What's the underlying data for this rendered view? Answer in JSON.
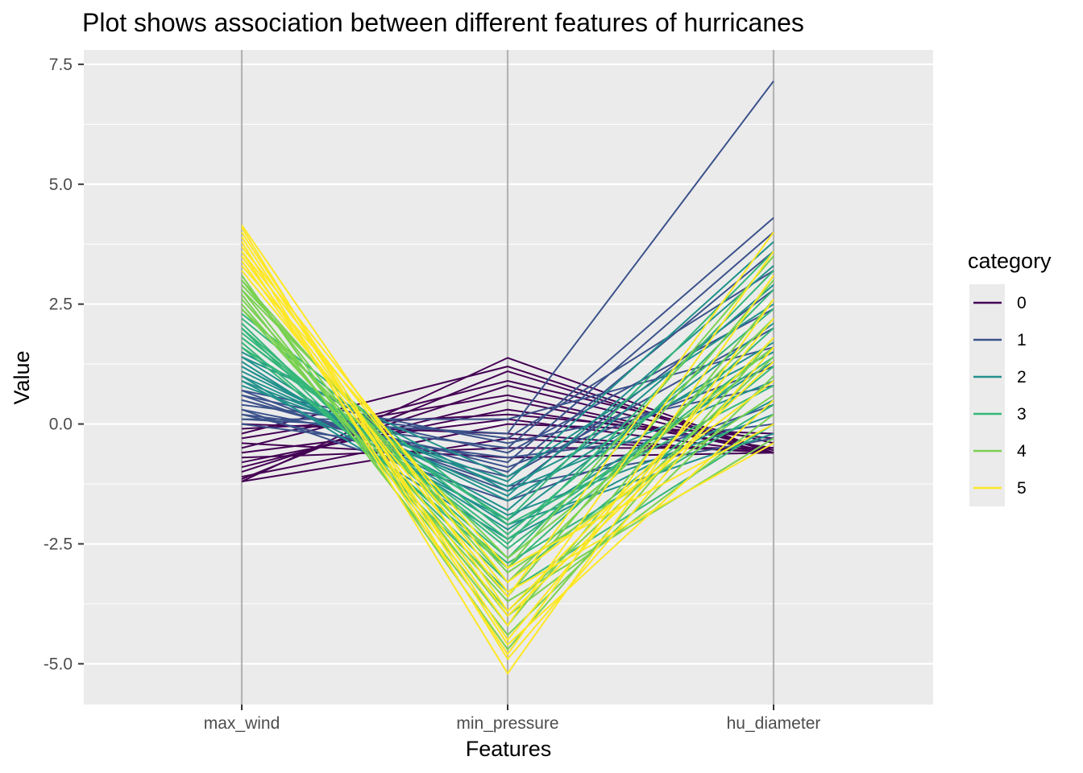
{
  "chart_data": {
    "type": "parallel-coordinates",
    "title": "Plot shows association between different features of hurricanes",
    "xlabel": "Features",
    "ylabel": "Value",
    "categories": [
      "max_wind",
      "min_pressure",
      "hu_diameter"
    ],
    "ylim": [
      -5.85,
      7.8
    ],
    "yticks": [
      7.5,
      5.0,
      2.5,
      0.0,
      -2.5,
      -5.0
    ],
    "ytick_labels": [
      "7.5",
      "5.0",
      "2.5",
      "0.0",
      "-2.5",
      "-5.0"
    ],
    "grid": true,
    "legend": {
      "title": "category",
      "position": "right",
      "entries": [
        "0",
        "1",
        "2",
        "3",
        "4",
        "5"
      ]
    },
    "series": [
      {
        "name": "0",
        "color": "#440154",
        "lines": [
          [
            -1.2,
            1.38,
            -0.6
          ],
          [
            -1.15,
            1.1,
            -0.6
          ],
          [
            -1.0,
            0.8,
            -0.55
          ],
          [
            -0.9,
            0.5,
            -0.6
          ],
          [
            -0.8,
            0.3,
            -0.5
          ],
          [
            -0.6,
            0.1,
            -0.6
          ],
          [
            -0.5,
            0.9,
            -0.4
          ],
          [
            -0.3,
            0.6,
            -0.6
          ],
          [
            -0.1,
            0.2,
            -0.3
          ],
          [
            0.0,
            -0.2,
            -0.6
          ],
          [
            -1.2,
            -0.3,
            -0.6
          ],
          [
            -0.7,
            -0.5,
            -0.5
          ],
          [
            -0.4,
            -0.7,
            -0.6
          ],
          [
            -1.1,
            0.0,
            -0.2
          ],
          [
            -0.2,
            1.2,
            -0.6
          ]
        ]
      },
      {
        "name": "1",
        "color": "#3b528b",
        "lines": [
          [
            0.1,
            -0.2,
            7.15
          ],
          [
            0.2,
            -0.5,
            4.3
          ],
          [
            0.3,
            -0.8,
            4.0
          ],
          [
            0.5,
            -1.0,
            3.6
          ],
          [
            0.4,
            -0.3,
            3.2
          ],
          [
            0.7,
            -1.4,
            2.8
          ],
          [
            0.6,
            -0.6,
            2.4
          ],
          [
            0.2,
            -1.1,
            2.0
          ],
          [
            0.1,
            0.1,
            1.6
          ],
          [
            0.5,
            -0.9,
            1.2
          ],
          [
            0.7,
            -0.4,
            0.8
          ],
          [
            0.3,
            -1.6,
            0.4
          ],
          [
            0.0,
            -0.7,
            0.0
          ],
          [
            0.6,
            -1.3,
            -0.3
          ]
        ]
      },
      {
        "name": "2",
        "color": "#21918c",
        "lines": [
          [
            0.8,
            -1.2,
            3.8
          ],
          [
            1.0,
            -1.5,
            3.3
          ],
          [
            1.2,
            -1.8,
            2.9
          ],
          [
            1.4,
            -1.1,
            2.5
          ],
          [
            0.9,
            -2.0,
            2.1
          ],
          [
            1.1,
            -1.6,
            1.7
          ],
          [
            1.3,
            -2.2,
            1.3
          ],
          [
            1.5,
            -1.4,
            0.9
          ],
          [
            1.0,
            -2.4,
            0.5
          ],
          [
            1.2,
            -1.9,
            0.2
          ],
          [
            1.4,
            -2.1,
            -0.2
          ],
          [
            0.9,
            -1.3,
            1.5
          ]
        ]
      },
      {
        "name": "3",
        "color": "#35b779",
        "lines": [
          [
            1.6,
            -2.0,
            3.6
          ],
          [
            1.8,
            -2.5,
            3.2
          ],
          [
            2.0,
            -2.8,
            2.8
          ],
          [
            2.2,
            -2.3,
            2.4
          ],
          [
            1.7,
            -3.0,
            2.0
          ],
          [
            1.9,
            -2.6,
            1.6
          ],
          [
            2.1,
            -3.3,
            1.2
          ],
          [
            2.3,
            -2.1,
            0.8
          ],
          [
            1.6,
            -2.9,
            0.4
          ],
          [
            2.0,
            -3.5,
            0.0
          ],
          [
            1.8,
            -2.4,
            1.4
          ]
        ]
      },
      {
        "name": "4",
        "color": "#7ad151",
        "lines": [
          [
            2.4,
            -3.0,
            3.5
          ],
          [
            2.6,
            -3.6,
            3.0
          ],
          [
            2.8,
            -4.2,
            2.6
          ],
          [
            3.0,
            -3.3,
            2.2
          ],
          [
            3.1,
            -4.7,
            1.8
          ],
          [
            2.5,
            -3.9,
            1.4
          ],
          [
            2.7,
            -4.4,
            1.0
          ],
          [
            2.9,
            -3.1,
            0.6
          ],
          [
            3.0,
            -4.0,
            0.2
          ],
          [
            2.4,
            -3.7,
            -0.3
          ],
          [
            2.8,
            -2.8,
            1.6
          ]
        ]
      },
      {
        "name": "5",
        "color": "#fde725",
        "lines": [
          [
            3.2,
            -3.6,
            4.0
          ],
          [
            3.4,
            -4.2,
            3.6
          ],
          [
            3.6,
            -4.8,
            3.1
          ],
          [
            3.8,
            -5.2,
            2.6
          ],
          [
            4.0,
            -4.5,
            2.2
          ],
          [
            4.15,
            -3.9,
            1.8
          ],
          [
            3.5,
            -4.0,
            1.3
          ],
          [
            3.7,
            -3.3,
            0.9
          ],
          [
            3.9,
            -4.6,
            0.5
          ],
          [
            3.3,
            -3.0,
            0.0
          ],
          [
            3.6,
            -3.5,
            -0.4
          ],
          [
            4.1,
            -4.9,
            1.6
          ]
        ]
      }
    ]
  }
}
